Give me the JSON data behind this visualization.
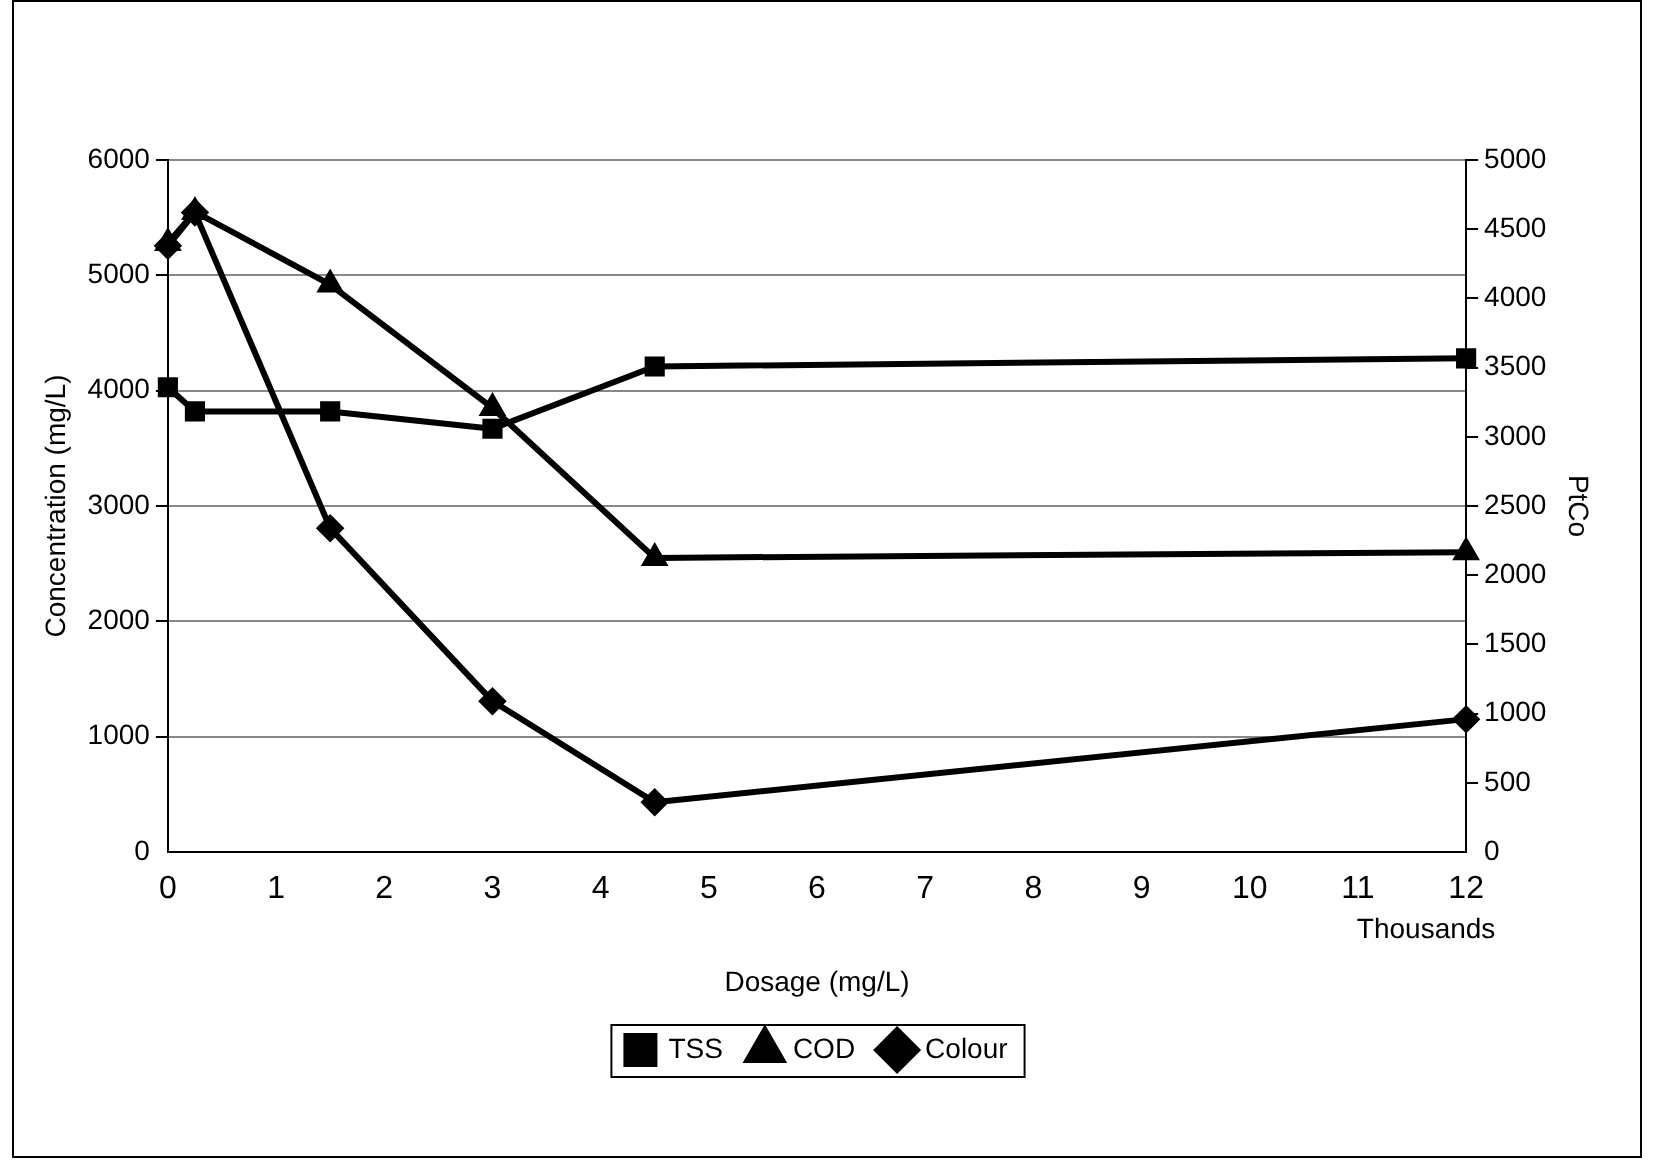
{
  "chart_data": {
    "type": "line",
    "xlabel": "Dosage (mg/L)",
    "ylabel": "Concentration (mg/L)",
    "y2label": "PtCo",
    "annotations": [
      "Thousands"
    ],
    "x": [
      0,
      0.25,
      1.5,
      3,
      4.5,
      12
    ],
    "xlim": [
      0,
      12
    ],
    "xticks": [
      0,
      1,
      2,
      3,
      4,
      5,
      6,
      7,
      8,
      9,
      10,
      11,
      12
    ],
    "ylim": [
      0,
      6000
    ],
    "yticks": [
      0,
      1000,
      2000,
      3000,
      4000,
      5000,
      6000
    ],
    "y2lim": [
      0,
      5000
    ],
    "y2ticks": [
      0,
      500,
      1000,
      1500,
      2000,
      2500,
      3000,
      3500,
      4000,
      4500,
      5000
    ],
    "grid": "y",
    "legend": "bottom",
    "line_style": "solid",
    "series": [
      {
        "name": "TSS",
        "color": "#000000",
        "marker": "square",
        "values": [
          4030,
          3820,
          3820,
          3670,
          4210,
          4280
        ]
      },
      {
        "name": "COD",
        "color": "#000000",
        "marker": "triangle",
        "values": [
          5280,
          5550,
          4920,
          3850,
          2550,
          2600
        ]
      },
      {
        "name": "Colour",
        "color": "#000000",
        "marker": "diamond",
        "axis": "y2",
        "values": [
          4380,
          4620,
          2340,
          1090,
          360,
          960
        ]
      }
    ]
  }
}
